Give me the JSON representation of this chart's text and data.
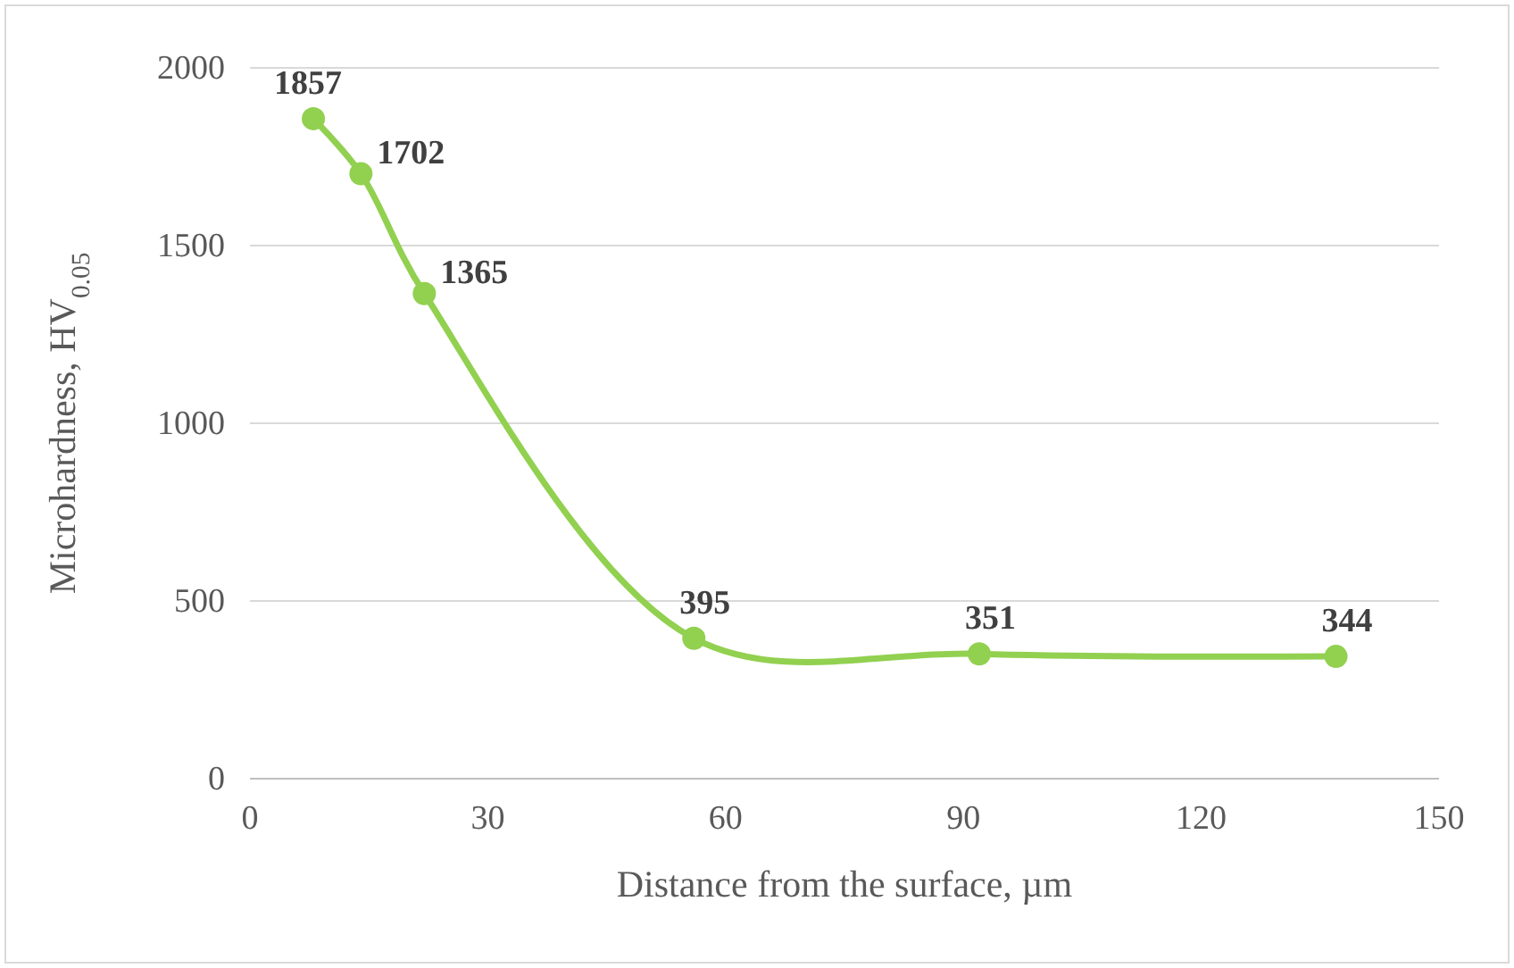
{
  "chart_data": {
    "type": "line",
    "xlabel": "Distance from the surface, µm",
    "ylabel": "Microhardness, HV$_{0.05}$",
    "x": [
      8,
      14,
      22,
      56,
      92,
      137
    ],
    "series": [
      {
        "color": "#92d050",
        "values": [
          1857,
          1702,
          1365,
          395,
          351,
          344
        ]
      }
    ],
    "xlim": [
      0,
      150
    ],
    "xticks": [
      0,
      30,
      60,
      90,
      120,
      150
    ],
    "ylim": [
      0,
      2000
    ],
    "yticks": [
      0,
      500,
      1000,
      1500,
      2000
    ],
    "grid": "y",
    "marker": "circle",
    "data_labels": true,
    "line_style": "solid"
  }
}
